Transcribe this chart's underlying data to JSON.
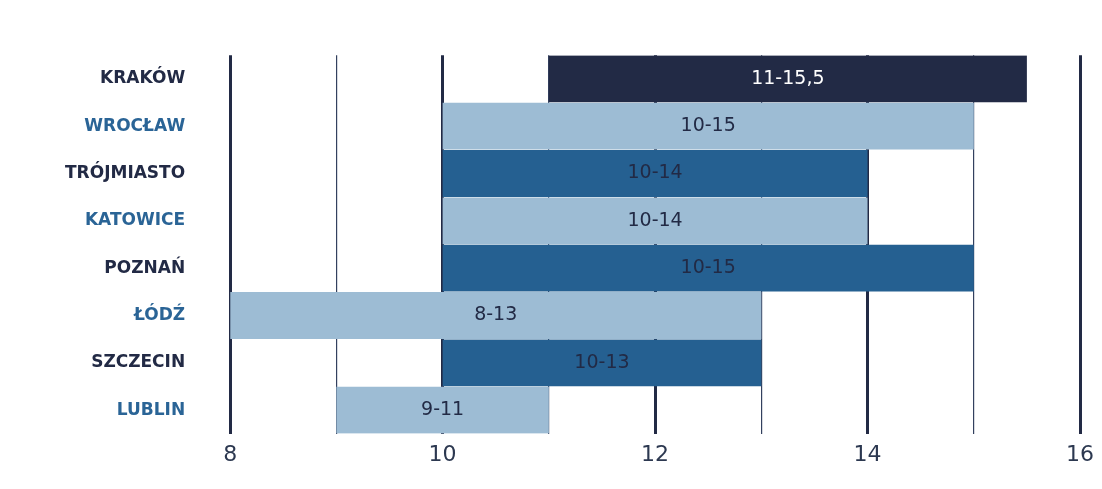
{
  "chart_data": {
    "type": "bar",
    "orientation": "horizontal",
    "categories": [
      "KRAKÓW",
      "WROCŁAW",
      "TRÓJMIASTO",
      "KATOWICE",
      "POZNAŃ",
      "ŁÓDŹ",
      "SZCZECIN",
      "LUBLIN"
    ],
    "base": [
      11,
      10,
      10,
      10,
      10,
      8,
      10,
      9
    ],
    "values": [
      4.5,
      5,
      4,
      4,
      5,
      5,
      3,
      2
    ],
    "colors": [
      "#222a45",
      "#9dbcd4",
      "#256091",
      "#9dbcd4",
      "#256091",
      "#9dbcd4",
      "#256091",
      "#9dbcd4"
    ],
    "value_labels": [
      "11-15,5",
      "10-15",
      "10-14",
      "10-14",
      "10-15",
      "8-13",
      "10-13",
      "9-11"
    ],
    "xlim": [
      8,
      16
    ],
    "xticks": [
      8,
      {
        "value": 9,
        "label": null
      },
      10,
      {
        "value": 11,
        "label": null
      },
      12,
      {
        "value": 13,
        "label": null
      },
      14,
      {
        "value": 15,
        "label": null
      },
      16
    ],
    "grid": "x",
    "legend": false
  }
}
